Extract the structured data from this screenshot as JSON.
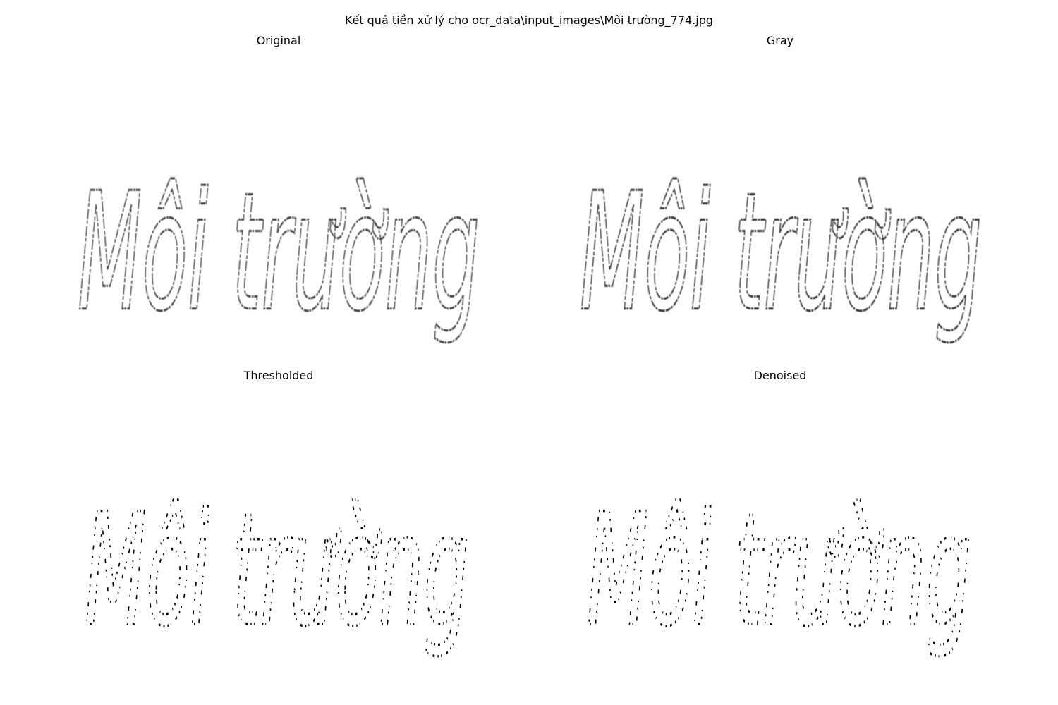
{
  "figure": {
    "title": "Kết quả tiền xử lý cho ocr_data\\input_images\\Môi trường_774.jpg"
  },
  "panels": [
    {
      "id": "original",
      "title": "Original",
      "word": "Môi trường"
    },
    {
      "id": "gray",
      "title": "Gray",
      "word": "Môi trường"
    },
    {
      "id": "thresholded",
      "title": "Thresholded",
      "word": "Môi trường"
    },
    {
      "id": "denoised",
      "title": "Denoised",
      "word": "Môi trường"
    }
  ]
}
